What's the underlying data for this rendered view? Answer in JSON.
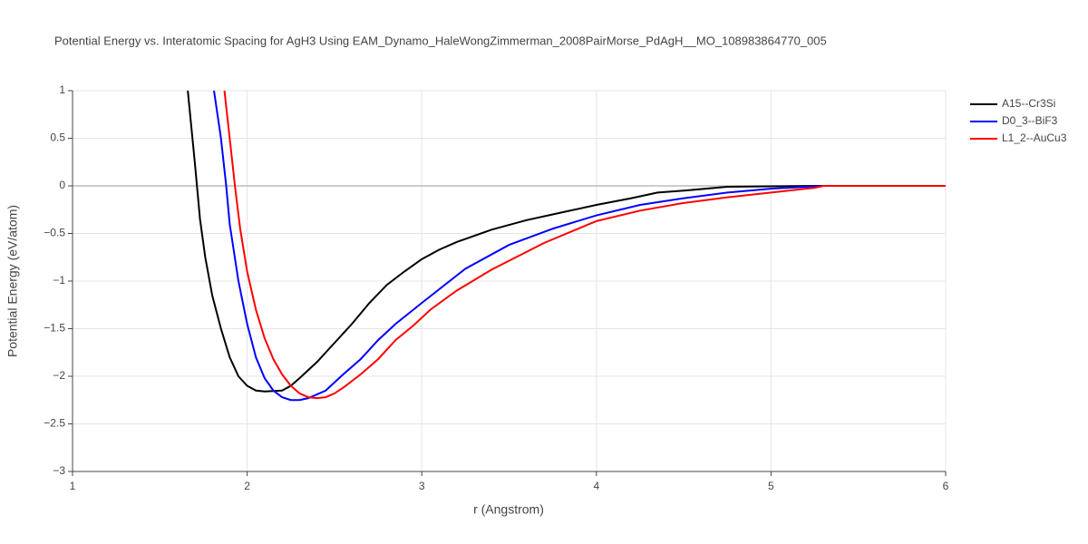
{
  "chart_data": {
    "type": "line",
    "title": "Potential Energy vs. Interatomic Spacing for AgH3 Using EAM_Dynamo_HaleWongZimmerman_2008PairMorse_PdAgH__MO_108983864770_005",
    "xlabel": "r (Angstrom)",
    "ylabel": "Potential Energy (eV/atom)",
    "xlim": [
      1,
      6
    ],
    "ylim": [
      -3,
      1
    ],
    "xticks": [
      1,
      2,
      3,
      4,
      5,
      6
    ],
    "yticks": [
      {
        "value": -3,
        "label": "−3"
      },
      {
        "value": -2.5,
        "label": "−2.5"
      },
      {
        "value": -2,
        "label": "−2"
      },
      {
        "value": -1.5,
        "label": "−1.5"
      },
      {
        "value": -1,
        "label": "−1"
      },
      {
        "value": -0.5,
        "label": "−0.5"
      },
      0,
      0.5,
      1
    ],
    "grid": true,
    "legend": "right",
    "series": [
      {
        "name": "A15--Cr3Si",
        "color": "#000000",
        "x": [
          1.66,
          1.7,
          1.73,
          1.76,
          1.8,
          1.85,
          1.9,
          1.95,
          2.0,
          2.05,
          2.1,
          2.2,
          2.25,
          2.3,
          2.4,
          2.5,
          2.6,
          2.7,
          2.8,
          2.9,
          3.0,
          3.1,
          3.2,
          3.4,
          3.6,
          3.8,
          4.0,
          4.2,
          4.35,
          4.5,
          4.75,
          5.0,
          5.3,
          6.0
        ],
        "values": [
          1.0,
          0.25,
          -0.35,
          -0.75,
          -1.15,
          -1.5,
          -1.8,
          -2.0,
          -2.1,
          -2.15,
          -2.16,
          -2.15,
          -2.1,
          -2.02,
          -1.85,
          -1.65,
          -1.45,
          -1.23,
          -1.04,
          -0.9,
          -0.77,
          -0.67,
          -0.59,
          -0.46,
          -0.36,
          -0.28,
          -0.2,
          -0.13,
          -0.07,
          -0.05,
          -0.01,
          -0.005,
          0,
          0
        ]
      },
      {
        "name": "D0_3--BiF3",
        "color": "#0000ff",
        "x": [
          1.81,
          1.85,
          1.88,
          1.9,
          1.95,
          2.0,
          2.05,
          2.1,
          2.15,
          2.2,
          2.25,
          2.3,
          2.35,
          2.45,
          2.55,
          2.65,
          2.75,
          2.85,
          3.0,
          3.25,
          3.5,
          3.75,
          4.0,
          4.25,
          4.5,
          4.75,
          5.0,
          5.3,
          6.0
        ],
        "values": [
          1.0,
          0.5,
          0.0,
          -0.4,
          -1.0,
          -1.45,
          -1.8,
          -2.02,
          -2.15,
          -2.22,
          -2.25,
          -2.25,
          -2.23,
          -2.15,
          -1.98,
          -1.82,
          -1.62,
          -1.45,
          -1.23,
          -0.87,
          -0.62,
          -0.45,
          -0.31,
          -0.2,
          -0.13,
          -0.07,
          -0.03,
          0,
          0
        ]
      },
      {
        "name": "L1_2--AuCu3",
        "color": "#ff0000",
        "x": [
          1.87,
          1.9,
          1.93,
          1.96,
          2.0,
          2.05,
          2.1,
          2.15,
          2.2,
          2.25,
          2.3,
          2.35,
          2.4,
          2.45,
          2.5,
          2.55,
          2.65,
          2.75,
          2.85,
          2.95,
          3.05,
          3.2,
          3.4,
          3.7,
          4.0,
          4.25,
          4.5,
          4.75,
          5.0,
          5.25,
          5.3,
          6.0
        ],
        "values": [
          1.0,
          0.5,
          0.0,
          -0.45,
          -0.9,
          -1.3,
          -1.6,
          -1.82,
          -1.98,
          -2.1,
          -2.18,
          -2.22,
          -2.23,
          -2.22,
          -2.18,
          -2.12,
          -1.98,
          -1.82,
          -1.62,
          -1.47,
          -1.3,
          -1.1,
          -0.88,
          -0.6,
          -0.37,
          -0.26,
          -0.18,
          -0.12,
          -0.07,
          -0.02,
          0,
          0
        ]
      }
    ]
  }
}
